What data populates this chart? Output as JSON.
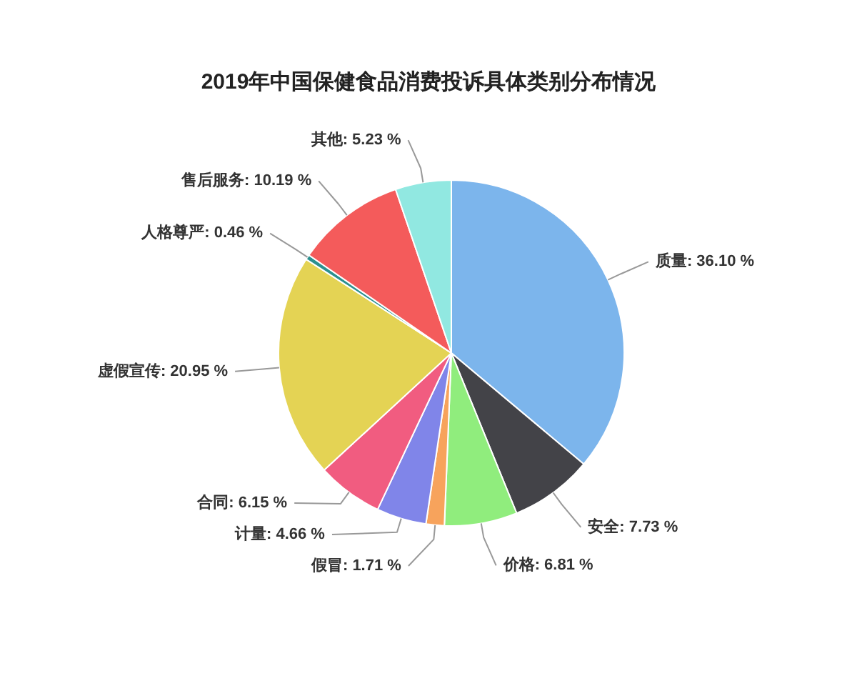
{
  "chart_data": {
    "type": "pie",
    "title": "2019年中国保健食品消费投诉具体类别分布情况",
    "categories": [
      "质量",
      "安全",
      "价格",
      "假冒",
      "计量",
      "合同",
      "虚假宣传",
      "人格尊严",
      "售后服务",
      "其他"
    ],
    "values": [
      36.1,
      7.73,
      6.81,
      1.71,
      4.66,
      6.15,
      20.95,
      0.46,
      10.19,
      5.23
    ],
    "colors": [
      "#7cb5ec",
      "#434348",
      "#90ed7d",
      "#f7a35c",
      "#8085e9",
      "#f15c80",
      "#e4d354",
      "#2b908f",
      "#f45b5b",
      "#91e8e1"
    ],
    "value_labels": [
      "36.10 %",
      "7.73 %",
      "6.81 %",
      "1.71 %",
      "4.66 %",
      "6.15 %",
      "20.95 %",
      "0.46 %",
      "10.19 %",
      "5.23 %"
    ]
  }
}
